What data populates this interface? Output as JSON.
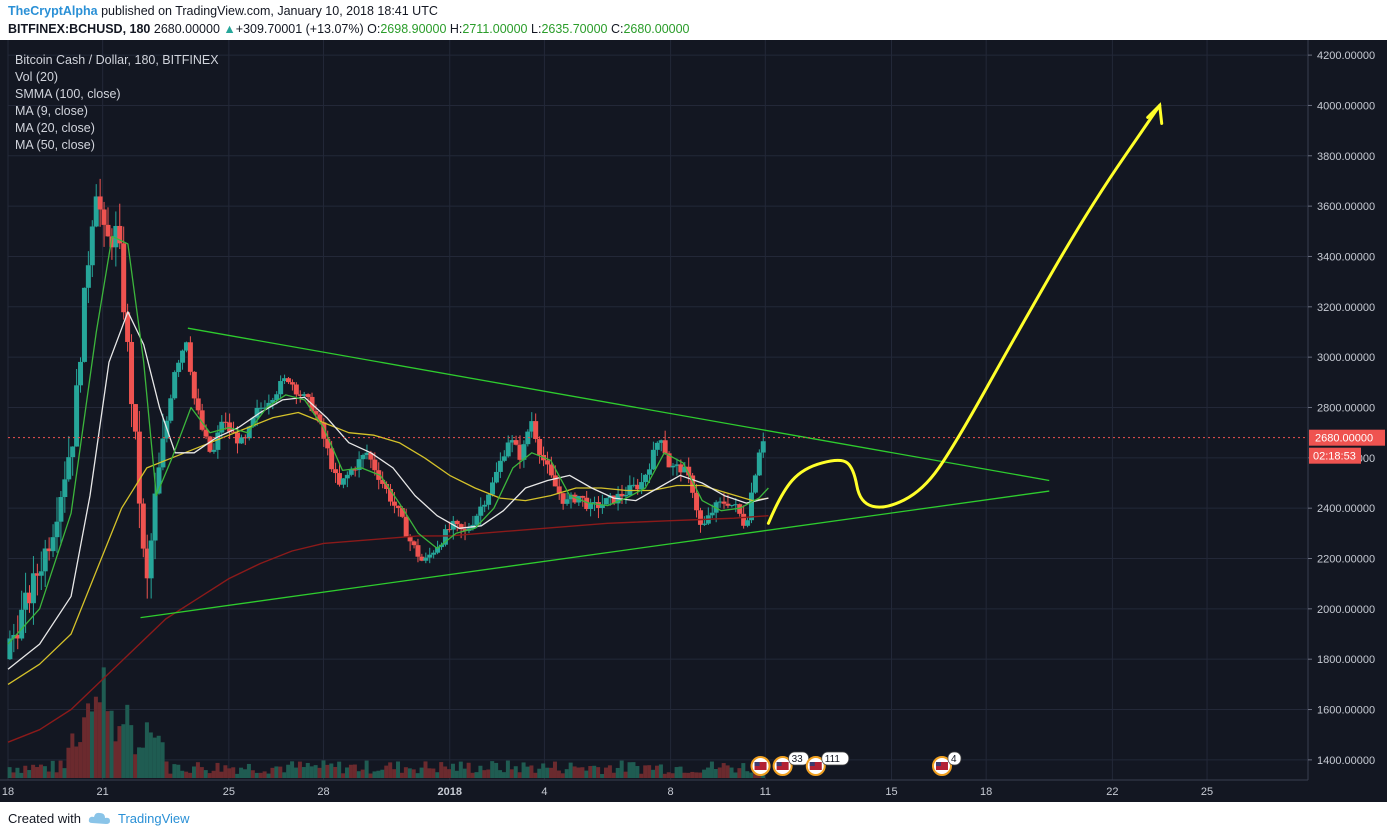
{
  "header": {
    "author": "TheCryptAlpha",
    "published_text": "published on TradingView.com, January 10, 2018 18:41 UTC",
    "symbol": "BITFINEX:BCHUSD, 180",
    "last": "2680.00000",
    "change": "+309.70001 (+13.07%)",
    "o_label": "O:",
    "o_value": "2698.90000",
    "h_label": "H:",
    "h_value": "2711.00000",
    "l_label": "L:",
    "l_value": "2635.70000",
    "c_label": "C:",
    "c_value": "2680.00000",
    "up_icon": "triangle-up-icon"
  },
  "legend": {
    "title": "Bitcoin Cash / Dollar, 180, BITFINEX",
    "items": [
      "Vol (20)",
      "SMMA (100, close)",
      "MA (9, close)",
      "MA (20, close)",
      "MA (50, close)"
    ]
  },
  "footer": {
    "created_with": "Created with",
    "brand": "TradingView",
    "logo_icon": "tradingview-cloud-icon"
  },
  "chart_data": {
    "type": "candlestick",
    "title": "Bitcoin Cash / Dollar, 180, BITFINEX",
    "y_ticks": [
      "4200.00000",
      "4000.00000",
      "3800.00000",
      "3600.00000",
      "3400.00000",
      "3200.00000",
      "3000.00000",
      "2800.00000",
      "2600.00000",
      "2400.00000",
      "2200.00000",
      "2000.00000",
      "1800.00000",
      "1600.00000",
      "1400.00000"
    ],
    "y_tick_values": [
      4200,
      4000,
      3800,
      3600,
      3400,
      3200,
      3000,
      2800,
      2600,
      2400,
      2200,
      2000,
      1800,
      1600,
      1400
    ],
    "ylim": [
      1320,
      4260
    ],
    "x_ticks": [
      "18",
      "21",
      "25",
      "28",
      "2018",
      "4",
      "8",
      "11",
      "15",
      "18",
      "22",
      "25"
    ],
    "x_tick_days": [
      0,
      3,
      7,
      10,
      14,
      17,
      21,
      24,
      28,
      31,
      35,
      38
    ],
    "xlim_days": [
      0,
      41.2
    ],
    "last_price_label": "2680.00000",
    "countdown_label": "02:18:53",
    "last_price": 2680,
    "grid": true,
    "colors": {
      "background": "#131722",
      "up": "#26a69a",
      "down": "#ef5350",
      "ma9": "#3cb63c",
      "ma20": "#e8e8e8",
      "ma50": "#d4c12a",
      "smma100": "#8b1a1a",
      "trendline": "#2ecc2e",
      "projection": "#ffff2a",
      "price_line": "#ef5350"
    },
    "trendlines": [
      {
        "name": "upper",
        "points": [
          [
            5.7,
            3115
          ],
          [
            33.0,
            2510
          ]
        ]
      },
      {
        "name": "lower",
        "points": [
          [
            4.2,
            1965
          ],
          [
            33.0,
            2468
          ]
        ]
      }
    ],
    "projection": [
      [
        24.1,
        2340
      ],
      [
        24.5,
        2460
      ],
      [
        25.2,
        2560
      ],
      [
        26.4,
        2600
      ],
      [
        26.8,
        2560
      ],
      [
        27.0,
        2420
      ],
      [
        27.8,
        2395
      ],
      [
        29.0,
        2470
      ],
      [
        30.0,
        2650
      ],
      [
        32.0,
        3100
      ],
      [
        34.3,
        3600
      ],
      [
        36.5,
        4000
      ]
    ],
    "price_path": [
      [
        0,
        1800
      ],
      [
        0.8,
        2050
      ],
      [
        1.5,
        2300
      ],
      [
        2.2,
        2700
      ],
      [
        2.6,
        3300
      ],
      [
        2.9,
        3700
      ],
      [
        3.2,
        3450
      ],
      [
        3.6,
        3500
      ],
      [
        3.9,
        3050
      ],
      [
        4.2,
        2600
      ],
      [
        4.5,
        2050
      ],
      [
        4.8,
        2450
      ],
      [
        5.1,
        2700
      ],
      [
        5.4,
        2950
      ],
      [
        5.8,
        3080
      ],
      [
        6.0,
        2850
      ],
      [
        6.3,
        2700
      ],
      [
        6.6,
        2600
      ],
      [
        6.9,
        2750
      ],
      [
        7.2,
        2700
      ],
      [
        7.6,
        2650
      ],
      [
        8.0,
        2780
      ],
      [
        8.5,
        2850
      ],
      [
        9.0,
        2920
      ],
      [
        9.4,
        2850
      ],
      [
        9.8,
        2800
      ],
      [
        10.2,
        2650
      ],
      [
        10.6,
        2480
      ],
      [
        11.0,
        2550
      ],
      [
        11.5,
        2620
      ],
      [
        12.0,
        2500
      ],
      [
        12.5,
        2380
      ],
      [
        12.9,
        2260
      ],
      [
        13.3,
        2180
      ],
      [
        13.7,
        2250
      ],
      [
        14.2,
        2330
      ],
      [
        14.6,
        2300
      ],
      [
        15.0,
        2380
      ],
      [
        15.5,
        2500
      ],
      [
        16.0,
        2680
      ],
      [
        16.4,
        2600
      ],
      [
        16.7,
        2760
      ],
      [
        17.0,
        2620
      ],
      [
        17.4,
        2500
      ],
      [
        17.8,
        2420
      ],
      [
        18.2,
        2450
      ],
      [
        18.6,
        2400
      ],
      [
        19.0,
        2420
      ],
      [
        19.4,
        2440
      ],
      [
        19.8,
        2470
      ],
      [
        20.2,
        2500
      ],
      [
        20.6,
        2620
      ],
      [
        20.8,
        2700
      ],
      [
        21.1,
        2560
      ],
      [
        21.5,
        2560
      ],
      [
        21.8,
        2490
      ],
      [
        22.1,
        2310
      ],
      [
        22.5,
        2400
      ],
      [
        22.9,
        2430
      ],
      [
        23.2,
        2400
      ],
      [
        23.5,
        2330
      ],
      [
        23.8,
        2540
      ],
      [
        24.0,
        2680
      ]
    ],
    "ma9": [
      [
        0,
        1860
      ],
      [
        1,
        2000
      ],
      [
        2,
        2380
      ],
      [
        2.8,
        3100
      ],
      [
        3.3,
        3480
      ],
      [
        3.8,
        3450
      ],
      [
        4.3,
        2980
      ],
      [
        4.7,
        2450
      ],
      [
        5.2,
        2600
      ],
      [
        5.8,
        2800
      ],
      [
        6.4,
        2700
      ],
      [
        7.0,
        2720
      ],
      [
        7.6,
        2700
      ],
      [
        8.2,
        2800
      ],
      [
        8.8,
        2850
      ],
      [
        9.4,
        2830
      ],
      [
        10.0,
        2720
      ],
      [
        10.6,
        2550
      ],
      [
        11.2,
        2560
      ],
      [
        11.8,
        2530
      ],
      [
        12.4,
        2420
      ],
      [
        13.0,
        2300
      ],
      [
        13.6,
        2240
      ],
      [
        14.2,
        2300
      ],
      [
        14.8,
        2320
      ],
      [
        15.4,
        2400
      ],
      [
        16.0,
        2560
      ],
      [
        16.6,
        2620
      ],
      [
        17.2,
        2590
      ],
      [
        17.8,
        2450
      ],
      [
        18.4,
        2420
      ],
      [
        19.0,
        2410
      ],
      [
        19.6,
        2440
      ],
      [
        20.2,
        2480
      ],
      [
        20.8,
        2620
      ],
      [
        21.4,
        2580
      ],
      [
        22.0,
        2430
      ],
      [
        22.6,
        2390
      ],
      [
        23.2,
        2400
      ],
      [
        23.8,
        2440
      ],
      [
        24.1,
        2480
      ]
    ],
    "ma20": [
      [
        0,
        1760
      ],
      [
        1,
        1860
      ],
      [
        2,
        2050
      ],
      [
        2.6,
        2450
      ],
      [
        3.2,
        2980
      ],
      [
        3.8,
        3180
      ],
      [
        4.3,
        3050
      ],
      [
        4.8,
        2800
      ],
      [
        5.3,
        2620
      ],
      [
        5.9,
        2620
      ],
      [
        6.6,
        2680
      ],
      [
        7.3,
        2720
      ],
      [
        8.0,
        2780
      ],
      [
        8.7,
        2830
      ],
      [
        9.4,
        2840
      ],
      [
        10.1,
        2760
      ],
      [
        10.8,
        2660
      ],
      [
        11.5,
        2620
      ],
      [
        12.2,
        2560
      ],
      [
        12.9,
        2450
      ],
      [
        13.6,
        2370
      ],
      [
        14.3,
        2320
      ],
      [
        15.0,
        2330
      ],
      [
        15.7,
        2390
      ],
      [
        16.4,
        2480
      ],
      [
        17.1,
        2510
      ],
      [
        17.8,
        2530
      ],
      [
        18.5,
        2480
      ],
      [
        19.2,
        2440
      ],
      [
        19.9,
        2430
      ],
      [
        20.6,
        2480
      ],
      [
        21.3,
        2530
      ],
      [
        22.0,
        2500
      ],
      [
        22.7,
        2450
      ],
      [
        23.4,
        2420
      ],
      [
        24.1,
        2440
      ]
    ],
    "ma50": [
      [
        0,
        1700
      ],
      [
        1,
        1780
      ],
      [
        2,
        1900
      ],
      [
        2.8,
        2150
      ],
      [
        3.6,
        2400
      ],
      [
        4.4,
        2560
      ],
      [
        5.2,
        2600
      ],
      [
        6.0,
        2640
      ],
      [
        6.8,
        2680
      ],
      [
        7.6,
        2720
      ],
      [
        8.4,
        2760
      ],
      [
        9.2,
        2780
      ],
      [
        10.0,
        2740
      ],
      [
        10.8,
        2700
      ],
      [
        11.6,
        2690
      ],
      [
        12.4,
        2660
      ],
      [
        13.2,
        2600
      ],
      [
        14.0,
        2530
      ],
      [
        14.8,
        2480
      ],
      [
        15.6,
        2440
      ],
      [
        16.4,
        2430
      ],
      [
        17.2,
        2450
      ],
      [
        18.0,
        2480
      ],
      [
        18.8,
        2480
      ],
      [
        19.6,
        2470
      ],
      [
        20.4,
        2470
      ],
      [
        21.2,
        2490
      ],
      [
        22.0,
        2490
      ],
      [
        22.8,
        2460
      ],
      [
        23.6,
        2430
      ],
      [
        24.1,
        2440
      ]
    ],
    "smma100": [
      [
        0,
        1470
      ],
      [
        1,
        1520
      ],
      [
        2,
        1600
      ],
      [
        3,
        1720
      ],
      [
        4,
        1840
      ],
      [
        5,
        1960
      ],
      [
        6,
        2040
      ],
      [
        7,
        2120
      ],
      [
        8,
        2180
      ],
      [
        9,
        2230
      ],
      [
        10,
        2260
      ],
      [
        11,
        2270
      ],
      [
        12,
        2280
      ],
      [
        13,
        2290
      ],
      [
        14,
        2290
      ],
      [
        15,
        2300
      ],
      [
        16,
        2310
      ],
      [
        17,
        2320
      ],
      [
        18,
        2330
      ],
      [
        19,
        2340
      ],
      [
        20,
        2345
      ],
      [
        21,
        2350
      ],
      [
        22,
        2355
      ],
      [
        23,
        2360
      ],
      [
        24.1,
        2370
      ]
    ],
    "events": [
      {
        "day": 23.85,
        "label": "",
        "flag": "us-flag-icon"
      },
      {
        "day": 24.55,
        "label": "33",
        "flag": "us-flag-icon"
      },
      {
        "day": 25.6,
        "label": "111",
        "flag": "us-flag-icon"
      },
      {
        "day": 29.6,
        "label": "4",
        "flag": "us-flag-icon"
      }
    ]
  }
}
